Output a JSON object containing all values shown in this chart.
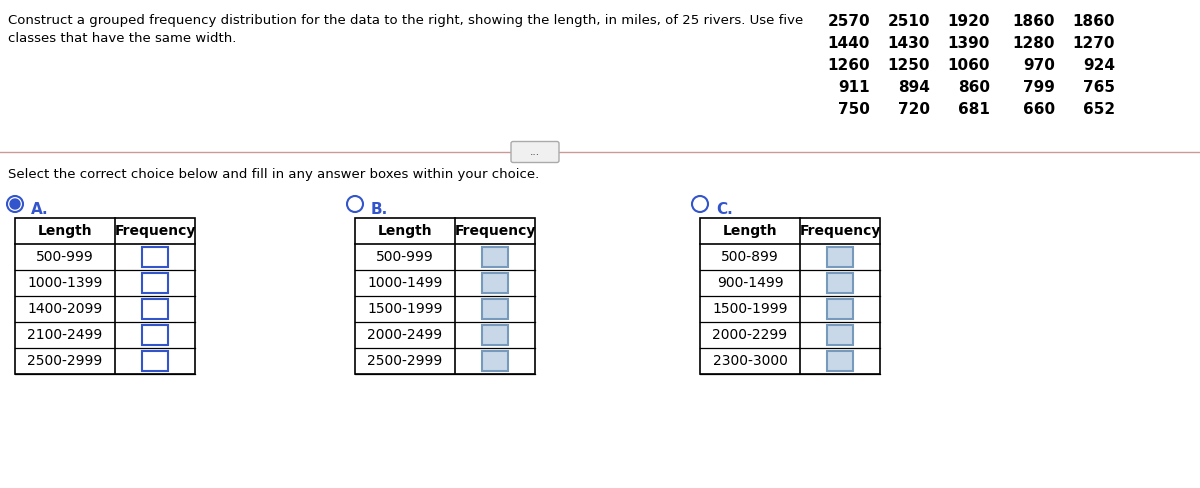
{
  "title_line1": "Construct a grouped frequency distribution for the data to the right, showing the length, in miles, of 25 rivers. Use five",
  "title_line2": "classes that have the same width.",
  "select_text": "Select the correct choice below and fill in any answer boxes within your choice.",
  "river_data": [
    [
      2570,
      2510,
      1920,
      1860,
      1860
    ],
    [
      1440,
      1430,
      1390,
      1280,
      1270
    ],
    [
      1260,
      1250,
      1060,
      970,
      924
    ],
    [
      911,
      894,
      860,
      799,
      765
    ],
    [
      750,
      720,
      681,
      660,
      652
    ]
  ],
  "table_A": {
    "label": "A.",
    "selected": true,
    "headers": [
      "Length",
      "Frequency"
    ],
    "rows": [
      "500-999",
      "1000-1399",
      "1400-2099",
      "2100-2499",
      "2500-2999"
    ]
  },
  "table_B": {
    "label": "B.",
    "selected": false,
    "headers": [
      "Length",
      "Frequency"
    ],
    "rows": [
      "500-999",
      "1000-1499",
      "1500-1999",
      "2000-2499",
      "2500-2999"
    ]
  },
  "table_C": {
    "label": "C.",
    "selected": false,
    "headers": [
      "Length",
      "Frequency"
    ],
    "rows": [
      "500-899",
      "900-1499",
      "1500-1999",
      "2000-2299",
      "2300-3000"
    ]
  },
  "separator_text": "...",
  "bg_color": "#ffffff",
  "text_color": "#000000",
  "radio_color": "#3355cc",
  "label_color": "#3355cc",
  "table_border_color": "#000000",
  "freq_box_color_A": "#3355cc",
  "freq_box_fill_A": "#ffffff",
  "freq_box_color_BC": "#7799bb",
  "freq_box_fill_BC": "#c8d8e8",
  "separator_line_color": "#cc9999"
}
